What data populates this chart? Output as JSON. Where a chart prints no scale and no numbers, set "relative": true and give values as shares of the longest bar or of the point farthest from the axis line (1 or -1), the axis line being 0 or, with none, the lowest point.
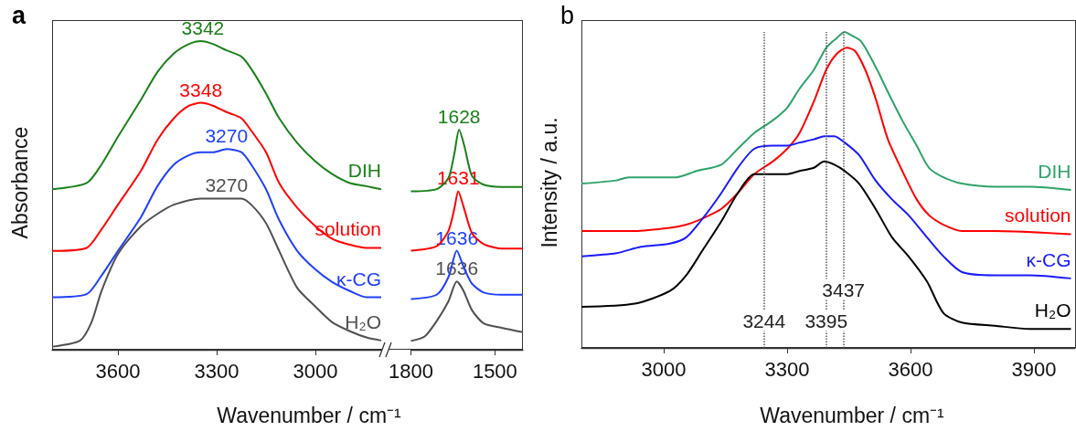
{
  "chart_data": [
    {
      "type": "line",
      "title": "a",
      "xlabel": "Wavenumber / cm⁻¹",
      "ylabel": "Absorbance",
      "relative": true,
      "marker": "none",
      "xlim": [
        3800,
        2800
      ],
      "xticks": [
        3600,
        3300,
        3000
      ],
      "series": [
        {
          "name": "DIH",
          "color": "#1a8019",
          "x": [
            3800,
            3695,
            3650,
            3600,
            3530,
            3480,
            3430,
            3385,
            3348,
            3310,
            3270,
            3225,
            3195,
            3150,
            3110,
            3055,
            3000,
            2950,
            2895,
            2845,
            2800
          ],
          "values": [
            0.52,
            0.54,
            0.6,
            0.69,
            0.81,
            0.9,
            0.96,
            0.99,
            1.0,
            0.99,
            0.97,
            0.95,
            0.91,
            0.83,
            0.75,
            0.67,
            0.61,
            0.57,
            0.54,
            0.53,
            0.52
          ]
        },
        {
          "name": "solution",
          "color": "#ff0000",
          "x": [
            3800,
            3695,
            3650,
            3600,
            3530,
            3480,
            3430,
            3385,
            3348,
            3310,
            3270,
            3225,
            3195,
            3150,
            3110,
            3055,
            3000,
            2950,
            2895,
            2845,
            2800
          ],
          "values": [
            0.32,
            0.33,
            0.39,
            0.47,
            0.58,
            0.68,
            0.75,
            0.79,
            0.8,
            0.79,
            0.77,
            0.75,
            0.71,
            0.64,
            0.54,
            0.46,
            0.4,
            0.36,
            0.34,
            0.33,
            0.33
          ]
        },
        {
          "name": "κ-CG",
          "color": "#1f3fff",
          "x": [
            3800,
            3695,
            3650,
            3600,
            3530,
            3480,
            3430,
            3385,
            3348,
            3310,
            3270,
            3225,
            3195,
            3150,
            3110,
            3055,
            3000,
            2950,
            2895,
            2845,
            2800
          ],
          "values": [
            0.17,
            0.18,
            0.24,
            0.32,
            0.43,
            0.53,
            0.6,
            0.63,
            0.64,
            0.64,
            0.65,
            0.64,
            0.6,
            0.52,
            0.42,
            0.32,
            0.26,
            0.22,
            0.19,
            0.17,
            0.17
          ]
        },
        {
          "name": "H₂O",
          "color": "#505050",
          "x": [
            3800,
            3715,
            3680,
            3650,
            3600,
            3530,
            3480,
            3430,
            3348,
            3270,
            3225,
            3195,
            3150,
            3110,
            3055,
            3000,
            2950,
            2895,
            2845,
            2800
          ],
          "values": [
            0.01,
            0.03,
            0.09,
            0.19,
            0.31,
            0.4,
            0.44,
            0.47,
            0.49,
            0.49,
            0.49,
            0.47,
            0.41,
            0.32,
            0.2,
            0.14,
            0.09,
            0.06,
            0.04,
            0.03
          ]
        }
      ],
      "annotations": [
        {
          "text": "3342",
          "x": 3342,
          "y": 1.0
        },
        {
          "text": "3348",
          "x": 3348,
          "y": 0.8
        },
        {
          "text": "3270",
          "x": 3270,
          "y": 0.65
        },
        {
          "text": "3270",
          "x": 3270,
          "y": 0.49
        }
      ]
    },
    {
      "type": "line",
      "relative": true,
      "marker": "none",
      "xlim": [
        1800,
        1400
      ],
      "xticks": [
        1800,
        1500
      ],
      "series": [
        {
          "color": "#1a8019",
          "x": [
            1800,
            1708,
            1666,
            1645,
            1628,
            1608,
            1582,
            1540,
            1477,
            1400
          ],
          "values": [
            0.72,
            0.73,
            0.78,
            0.89,
            1.0,
            0.92,
            0.79,
            0.75,
            0.74,
            0.74
          ]
        },
        {
          "color": "#ff0000",
          "x": [
            1800,
            1708,
            1666,
            1645,
            1631,
            1612,
            1582,
            1540,
            1477,
            1400
          ],
          "values": [
            0.45,
            0.47,
            0.54,
            0.64,
            0.72,
            0.65,
            0.53,
            0.48,
            0.46,
            0.46
          ]
        },
        {
          "color": "#1f3fff",
          "x": [
            1800,
            1708,
            1666,
            1636,
            1613,
            1582,
            1540,
            1477,
            1400
          ],
          "values": [
            0.23,
            0.25,
            0.33,
            0.45,
            0.38,
            0.3,
            0.26,
            0.25,
            0.25
          ]
        },
        {
          "color": "#505050",
          "x": [
            1800,
            1751,
            1708,
            1666,
            1636,
            1613,
            1582,
            1540,
            1477,
            1400
          ],
          "values": [
            0.04,
            0.06,
            0.13,
            0.22,
            0.31,
            0.27,
            0.18,
            0.12,
            0.1,
            0.08
          ]
        }
      ],
      "annotations": [
        {
          "text": "1628",
          "x": 1628,
          "y": 1.0
        },
        {
          "text": "1631",
          "x": 1631,
          "y": 0.72
        },
        {
          "text": "1636",
          "x": 1636,
          "y": 0.45
        },
        {
          "text": "1636",
          "x": 1636,
          "y": 0.31
        }
      ]
    },
    {
      "type": "line",
      "title": "b",
      "xlabel": "Wavenumber / cm⁻¹",
      "ylabel": "Intensity / a.u.",
      "relative": true,
      "marker": "none",
      "xlim": [
        2800,
        4000
      ],
      "xticks": [
        3000,
        3300,
        3600,
        3900
      ],
      "series": [
        {
          "name": "DIH",
          "color": "#2ea36a",
          "x": [
            2800,
            2885,
            2915,
            2970,
            3030,
            3080,
            3140,
            3180,
            3220,
            3265,
            3300,
            3330,
            3365,
            3395,
            3420,
            3440,
            3455,
            3480,
            3515,
            3545,
            3580,
            3615,
            3645,
            3680,
            3725,
            3805,
            3890,
            3990
          ],
          "values": [
            0.52,
            0.53,
            0.54,
            0.54,
            0.54,
            0.56,
            0.58,
            0.63,
            0.68,
            0.72,
            0.76,
            0.82,
            0.88,
            0.95,
            0.98,
            1.0,
            0.99,
            0.97,
            0.89,
            0.81,
            0.72,
            0.64,
            0.57,
            0.54,
            0.52,
            0.51,
            0.51,
            0.5
          ]
        },
        {
          "name": "solution",
          "color": "#ff0000",
          "x": [
            2800,
            2930,
            3015,
            3055,
            3095,
            3140,
            3180,
            3220,
            3265,
            3300,
            3330,
            3365,
            3395,
            3420,
            3445,
            3465,
            3490,
            3515,
            3545,
            3580,
            3615,
            3645,
            3680,
            3725,
            3805,
            3990
          ],
          "values": [
            0.37,
            0.37,
            0.38,
            0.39,
            0.41,
            0.44,
            0.49,
            0.55,
            0.59,
            0.63,
            0.68,
            0.78,
            0.88,
            0.93,
            0.95,
            0.94,
            0.88,
            0.79,
            0.66,
            0.56,
            0.47,
            0.42,
            0.39,
            0.37,
            0.37,
            0.36
          ]
        },
        {
          "name": "κ-CG",
          "color": "#1a1aff",
          "x": [
            2800,
            2885,
            2945,
            3015,
            3055,
            3095,
            3140,
            3180,
            3220,
            3265,
            3300,
            3330,
            3365,
            3390,
            3415,
            3440,
            3475,
            3515,
            3555,
            3595,
            3640,
            3680,
            3725,
            3805,
            3890,
            3990
          ],
          "values": [
            0.29,
            0.3,
            0.32,
            0.33,
            0.35,
            0.41,
            0.49,
            0.57,
            0.63,
            0.64,
            0.64,
            0.65,
            0.66,
            0.67,
            0.67,
            0.65,
            0.61,
            0.53,
            0.47,
            0.42,
            0.35,
            0.29,
            0.24,
            0.23,
            0.23,
            0.22
          ]
        },
        {
          "name": "H₂O",
          "color": "#000000",
          "x": [
            2800,
            2930,
            3015,
            3055,
            3095,
            3140,
            3180,
            3220,
            3265,
            3300,
            3330,
            3365,
            3390,
            3415,
            3440,
            3475,
            3515,
            3555,
            3595,
            3640,
            3680,
            3725,
            3805,
            3890,
            3990
          ],
          "values": [
            0.13,
            0.14,
            0.18,
            0.23,
            0.31,
            0.4,
            0.49,
            0.55,
            0.55,
            0.55,
            0.56,
            0.57,
            0.59,
            0.58,
            0.56,
            0.52,
            0.44,
            0.35,
            0.29,
            0.21,
            0.11,
            0.08,
            0.07,
            0.06,
            0.06
          ]
        }
      ],
      "ref_lines": [
        {
          "axis": "x",
          "value": 3244,
          "label": "3244",
          "color": "#555555",
          "line_style": "dotted"
        },
        {
          "axis": "x",
          "value": 3395,
          "label": "3395",
          "color": "#555555",
          "line_style": "dotted"
        },
        {
          "axis": "x",
          "value": 3437,
          "label": "3437",
          "color": "#555555",
          "line_style": "dotted"
        }
      ]
    }
  ]
}
